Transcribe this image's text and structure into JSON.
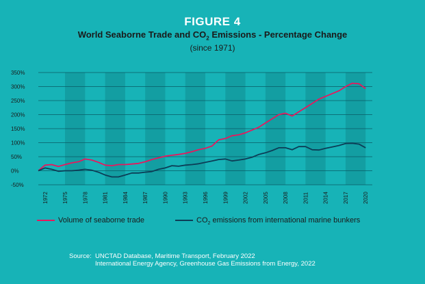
{
  "header": {
    "figure_label": "FIGURE 4",
    "title_part1": "World Seaborne Trade and CO",
    "title_sub": "2",
    "title_part2": " Emissions - Percentage Change",
    "subtitle": "(since 1971)"
  },
  "chart_data": {
    "type": "line",
    "title": "World Seaborne Trade and CO2 Emissions - Percentage Change",
    "subtitle": "(since 1971)",
    "xlabel": "",
    "ylabel": "",
    "ylim": [
      -50,
      350
    ],
    "yticks": [
      -50,
      0,
      50,
      100,
      150,
      200,
      250,
      300,
      350
    ],
    "ytick_labels": [
      "-50%",
      "0%",
      "50%",
      "100%",
      "150%",
      "200%",
      "250%",
      "300%",
      "350%"
    ],
    "xticks": [
      1972,
      1975,
      1978,
      1981,
      1984,
      1987,
      1990,
      1993,
      1996,
      1999,
      2002,
      2005,
      2008,
      2011,
      2014,
      2017,
      2020
    ],
    "xlim": [
      1971,
      2021
    ],
    "grid": true,
    "legend_position": "bottom",
    "x": [
      1971,
      1972,
      1973,
      1974,
      1975,
      1976,
      1977,
      1978,
      1979,
      1980,
      1981,
      1982,
      1983,
      1984,
      1985,
      1986,
      1987,
      1988,
      1989,
      1990,
      1991,
      1992,
      1993,
      1994,
      1995,
      1996,
      1997,
      1998,
      1999,
      2000,
      2001,
      2002,
      2003,
      2004,
      2005,
      2006,
      2007,
      2008,
      2009,
      2010,
      2011,
      2012,
      2013,
      2014,
      2015,
      2016,
      2017,
      2018,
      2019,
      2020
    ],
    "series": [
      {
        "name": "Volume of seaborne trade",
        "color": "#e8175d",
        "values": [
          0,
          20,
          22,
          15,
          22,
          28,
          32,
          42,
          38,
          30,
          20,
          18,
          22,
          22,
          24,
          26,
          32,
          40,
          46,
          52,
          55,
          58,
          62,
          68,
          75,
          80,
          88,
          110,
          115,
          125,
          128,
          135,
          145,
          155,
          170,
          185,
          200,
          205,
          195,
          210,
          225,
          240,
          255,
          265,
          275,
          285,
          300,
          312,
          310,
          293
        ]
      },
      {
        "name": "CO2 emissions from international marine bunkers",
        "color": "#0c3d56",
        "values": [
          0,
          10,
          5,
          -2,
          0,
          0,
          2,
          5,
          2,
          -5,
          -15,
          -22,
          -22,
          -15,
          -8,
          -8,
          -5,
          -3,
          5,
          10,
          18,
          16,
          20,
          22,
          25,
          30,
          35,
          40,
          42,
          35,
          38,
          42,
          48,
          58,
          64,
          72,
          82,
          82,
          75,
          86,
          86,
          75,
          74,
          80,
          85,
          90,
          97,
          98,
          95,
          82
        ]
      }
    ]
  },
  "legend": {
    "trade_label": "Volume of seaborne trade",
    "co2_label_part1": "CO",
    "co2_label_sub": "2",
    "co2_label_part2": " emissions from international marine bunkers"
  },
  "source": {
    "key": "Source:",
    "line1": "UNCTAD Database, Maritime Transport, February 2022",
    "line2": "International Energy Agency, Greenhouse Gas Emissions from Energy, 2022"
  },
  "colors": {
    "background": "#17b3b7",
    "band": "#139ea2",
    "grid": "#0a5a64",
    "trade": "#e8175d",
    "co2": "#0c3d56"
  }
}
